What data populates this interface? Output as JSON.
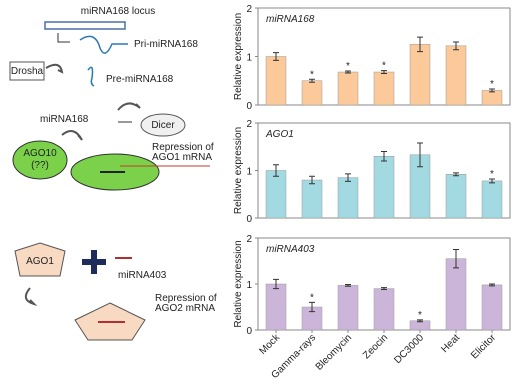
{
  "chart_data": [
    {
      "type": "bar",
      "title": "miRNA168",
      "ylabel": "Relative expression",
      "values": [
        1.0,
        0.5,
        0.68,
        0.68,
        1.25,
        1.22,
        0.3
      ],
      "errors": [
        0.08,
        0.03,
        0.02,
        0.03,
        0.15,
        0.08,
        0.03
      ],
      "star_labels": [
        null,
        "*",
        "*",
        "*",
        null,
        null,
        "*"
      ],
      "color": "#fbc99a",
      "ylim": [
        0,
        2
      ],
      "yticks": [
        0,
        1,
        2
      ]
    },
    {
      "type": "bar",
      "title": "AGO1",
      "ylabel": "Relative expression",
      "values": [
        1.0,
        0.8,
        0.85,
        1.3,
        1.33,
        0.92,
        0.78
      ],
      "errors": [
        0.12,
        0.08,
        0.08,
        0.1,
        0.25,
        0.03,
        0.04
      ],
      "star_labels": [
        null,
        null,
        null,
        null,
        null,
        null,
        "*"
      ],
      "color": "#a3dae2",
      "ylim": [
        0,
        2
      ],
      "yticks": [
        0,
        1,
        2
      ]
    },
    {
      "type": "bar",
      "title": "miRNA403",
      "ylabel": "Relative expression",
      "categories": [
        "Mock",
        "Gamma-rays",
        "Bleomycin",
        "Zeocin",
        "DC3000",
        "Heat",
        "Elicitor"
      ],
      "values": [
        1.0,
        0.5,
        0.97,
        0.9,
        0.2,
        1.55,
        0.98
      ],
      "errors": [
        0.1,
        0.1,
        0.02,
        0.02,
        0.02,
        0.2,
        0.02
      ],
      "star_labels": [
        null,
        "*",
        null,
        null,
        "*",
        null,
        null
      ],
      "color": "#cbb6da",
      "ylim": [
        0,
        2
      ],
      "yticks": [
        0,
        1,
        2
      ]
    }
  ],
  "diagram": {
    "locus": "miRNA168 locus",
    "pri": "Pri-miRNA168",
    "drosha": "Drosha",
    "pre": "Pre-miRNA168",
    "mirna168": "miRNA168",
    "dicer": "Dicer",
    "ago10": [
      "AGO10",
      "(??)"
    ],
    "repression1": [
      "Repression of",
      "AGO1 mRNA"
    ],
    "ago1": "AGO1",
    "mirna403": "miRNA403",
    "repression2": [
      "Repression of",
      "AGO2 mRNA"
    ]
  }
}
